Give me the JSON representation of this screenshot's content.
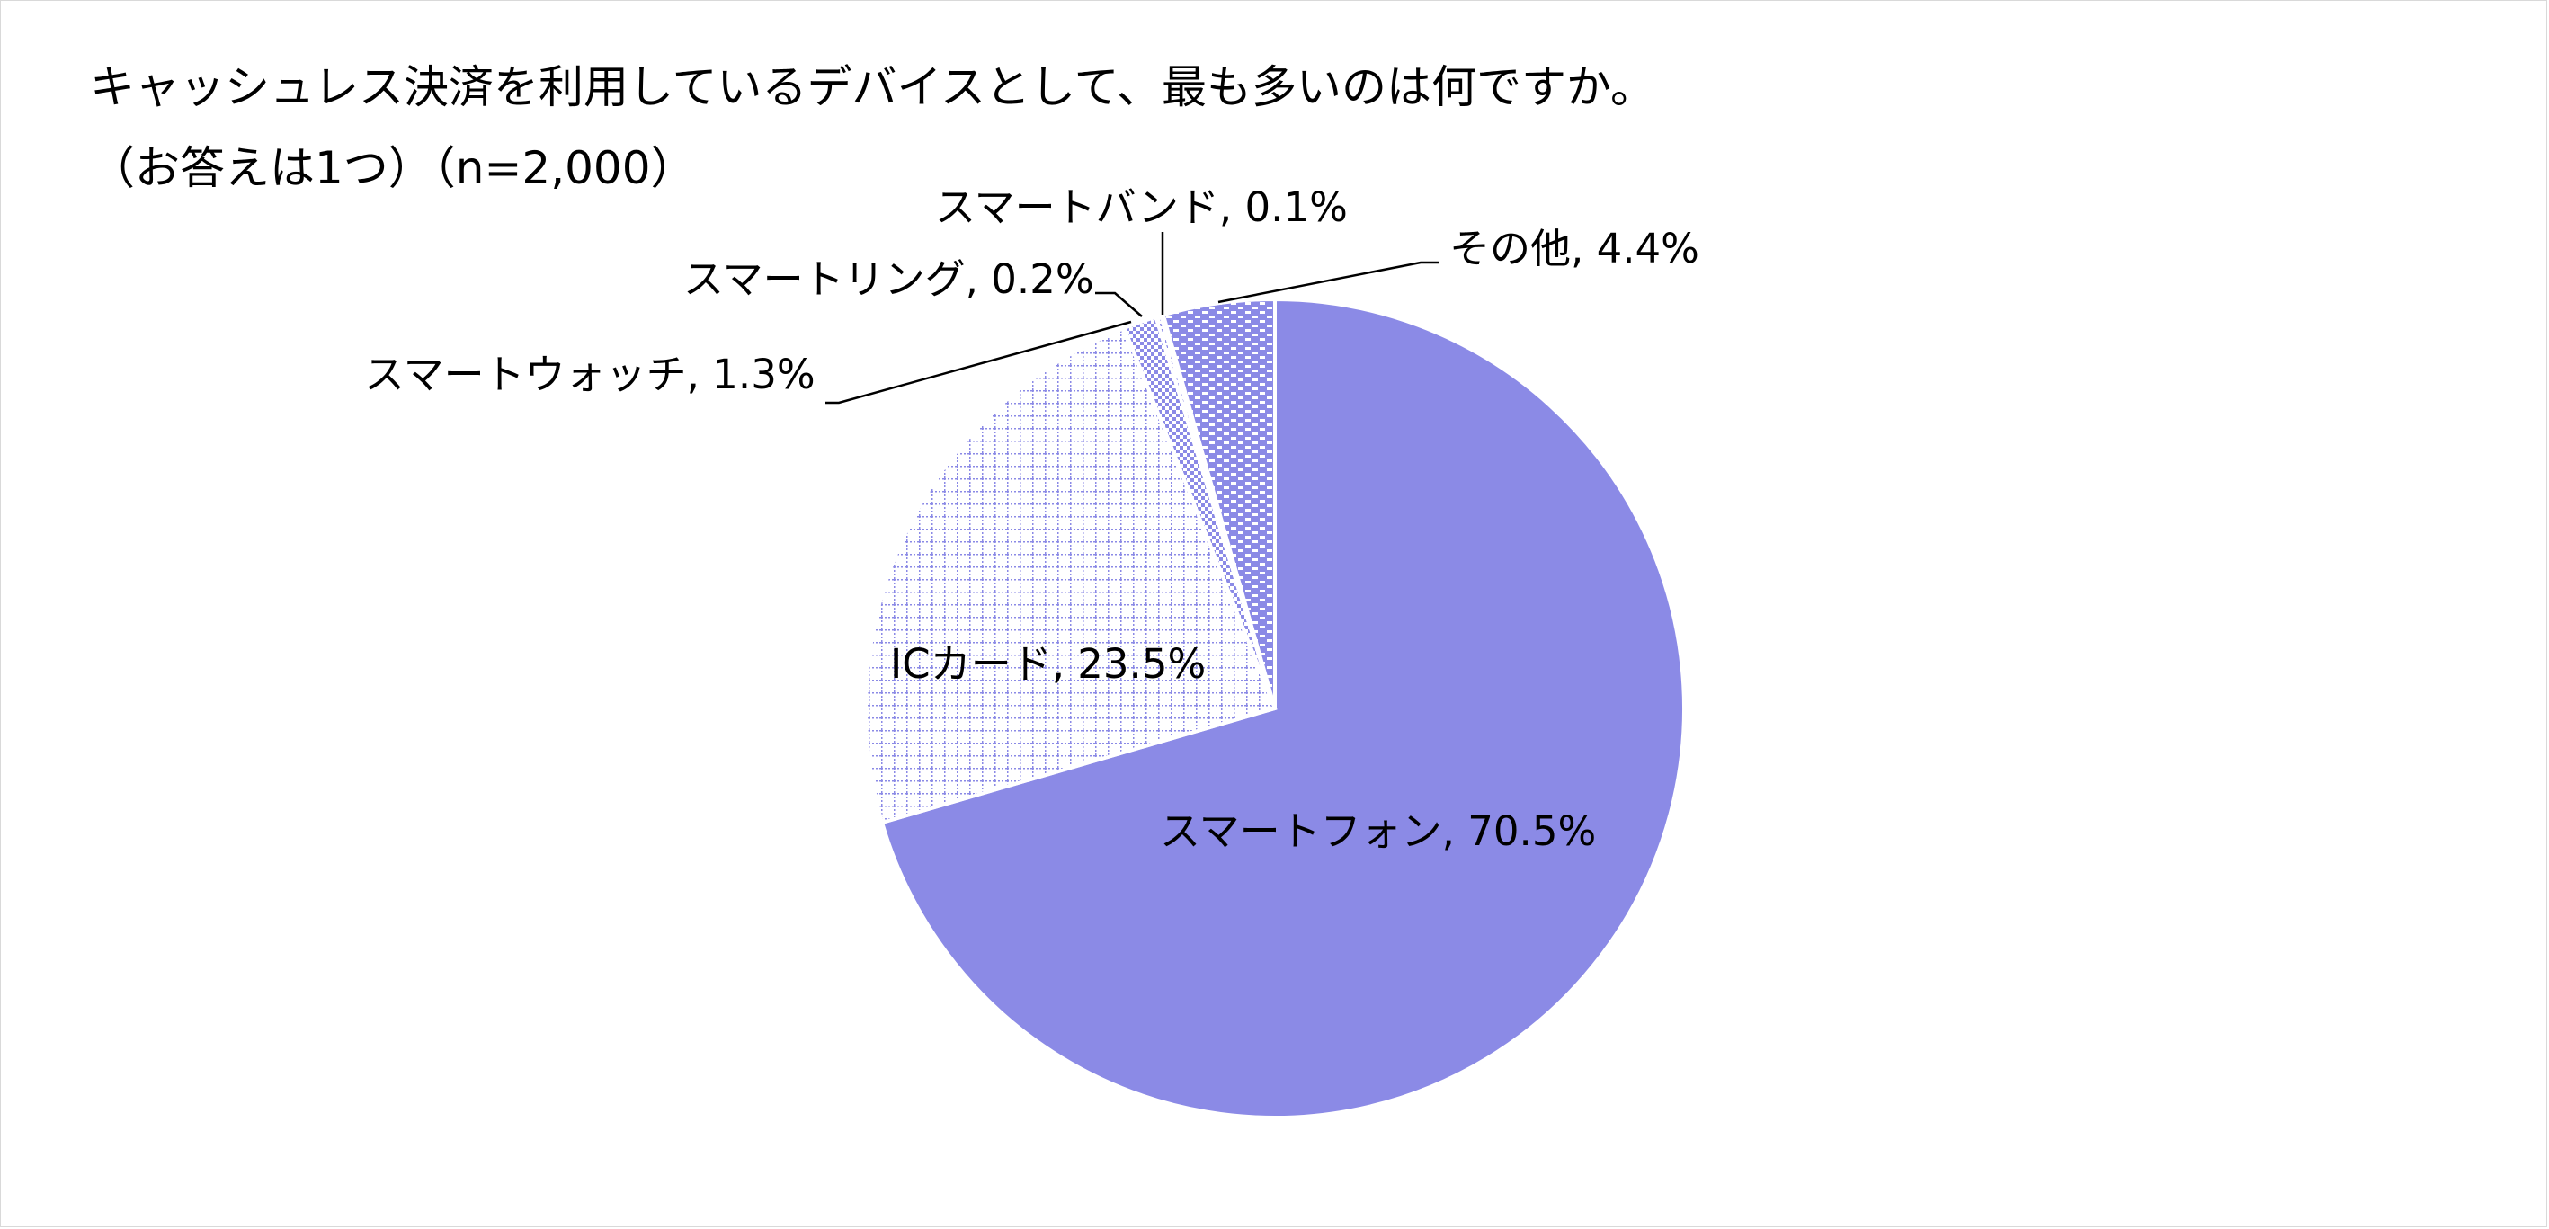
{
  "chart_data": {
    "type": "pie",
    "title": "キャッシュレス決済を利用しているデバイスとして、最も多いのは何ですか。",
    "subtitle": "（お答えは1つ）（n=2,000）",
    "slices": [
      {
        "label": "スマートフォン",
        "value": 70.5,
        "label_text": "スマートフォン, 70.5%",
        "color": "#8b8ae6",
        "pattern": "solid"
      },
      {
        "label": "ICカード",
        "value": 23.5,
        "label_text": "ICカード, 23.5%",
        "color": "#8b8ae6",
        "pattern": "grid"
      },
      {
        "label": "スマートウォッチ",
        "value": 1.3,
        "label_text": "スマートウォッチ, 1.3%",
        "color": "#8b8ae6",
        "pattern": "checker"
      },
      {
        "label": "スマートリング",
        "value": 0.2,
        "label_text": "スマートリング, 0.2%",
        "color": "#8b8ae6",
        "pattern": "dots"
      },
      {
        "label": "スマートバンド",
        "value": 0.1,
        "label_text": "スマートバンド, 0.1%",
        "color": "#8b8ae6",
        "pattern": "dense"
      },
      {
        "label": "その他",
        "value": 4.4,
        "label_text": "その他, 4.4%",
        "color": "#8b8ae6",
        "pattern": "brick"
      }
    ]
  }
}
